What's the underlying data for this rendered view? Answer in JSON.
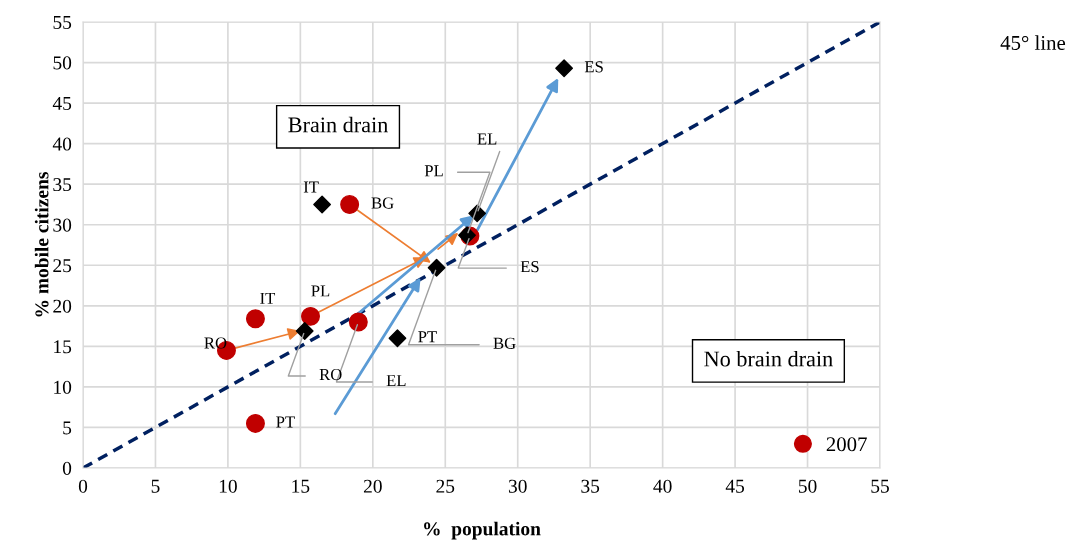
{
  "chart_data": {
    "type": "scatter",
    "xlabel": "%  population",
    "ylabel": "% mobile citizens",
    "xlim": [
      0,
      55
    ],
    "ylim": [
      0,
      55
    ],
    "xticks": [
      0,
      5,
      10,
      15,
      20,
      25,
      30,
      35,
      40,
      45,
      50,
      55
    ],
    "yticks": [
      0,
      5,
      10,
      15,
      20,
      25,
      30,
      35,
      40,
      45,
      50,
      55
    ],
    "grid": true,
    "legend": "bottom right",
    "annotations": [
      "Brain drain",
      "No brain drain",
      "45° line"
    ],
    "series": [
      {
        "type": "line",
        "x": [
          0,
          55
        ],
        "values": [
          0,
          55
        ],
        "color": "#002060",
        "line_style": "dashed",
        "marker": "none"
      },
      {
        "name": "2007",
        "marker": "circle",
        "color": "#c00000",
        "x": [
          9.9,
          11.9,
          11.9,
          15.7,
          18.4,
          19.0,
          26.7
        ],
        "values": [
          14.5,
          18.4,
          5.5,
          18.7,
          32.5,
          18.0,
          28.6
        ],
        "value_labels": [
          "RO",
          "IT",
          "PT",
          "PL",
          "BG",
          "EL",
          "ES"
        ]
      },
      {
        "marker": "diamond",
        "color": "#000000",
        "x": [
          16.5,
          15.3,
          21.7,
          24.4,
          26.5,
          27.2,
          33.2
        ],
        "values": [
          32.5,
          16.9,
          16.0,
          24.7,
          28.7,
          31.4,
          49.3
        ],
        "value_labels": [
          "IT",
          "RO",
          "PT",
          "BG",
          "PL",
          "EL",
          "ES"
        ]
      }
    ]
  }
}
